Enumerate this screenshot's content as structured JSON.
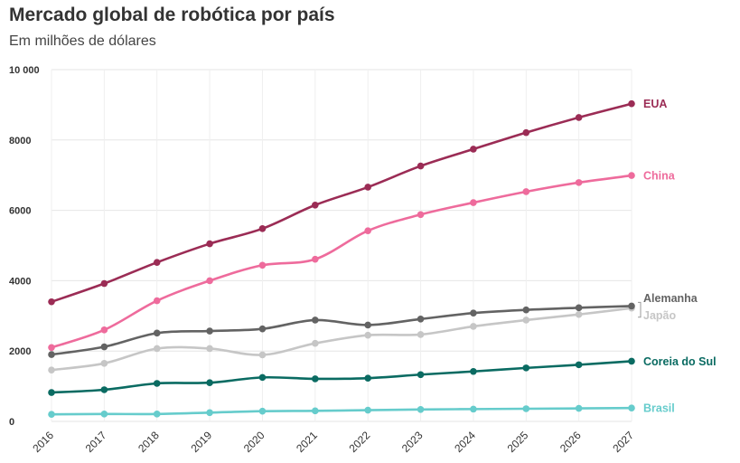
{
  "chart_data": {
    "type": "line",
    "title": "Mercado global de robótica por país",
    "subtitle": "Em milhões de dólares",
    "xlabel": "",
    "ylabel": "",
    "x": [
      "2016",
      "2017",
      "2018",
      "2019",
      "2020",
      "2021",
      "2022",
      "2023",
      "2024",
      "2025",
      "2026",
      "2027"
    ],
    "ylim": [
      0,
      10000
    ],
    "yticks": [
      {
        "value": 0,
        "label": "0"
      },
      {
        "value": 2000,
        "label": "2000"
      },
      {
        "value": 4000,
        "label": "4000"
      },
      {
        "value": 6000,
        "label": "6000"
      },
      {
        "value": 8000,
        "label": "8000"
      },
      {
        "value": 10000,
        "label": "10 000"
      }
    ],
    "grid": true,
    "legend": "direct labels at line ends",
    "series": [
      {
        "name": "EUA",
        "color": "#9b2c55",
        "values": [
          3400,
          3920,
          4520,
          5050,
          5480,
          6150,
          6660,
          7260,
          7740,
          8210,
          8640,
          9030
        ]
      },
      {
        "name": "China",
        "color": "#ee6b9c",
        "values": [
          2100,
          2600,
          3430,
          4000,
          4440,
          4610,
          5420,
          5880,
          6220,
          6530,
          6790,
          6990
        ]
      },
      {
        "name": "Alemanha",
        "color": "#636363",
        "values": [
          1900,
          2120,
          2510,
          2570,
          2630,
          2880,
          2740,
          2910,
          3080,
          3170,
          3230,
          3280
        ]
      },
      {
        "name": "Japão",
        "color": "#c6c6c6",
        "values": [
          1460,
          1650,
          2070,
          2070,
          1890,
          2220,
          2450,
          2470,
          2700,
          2880,
          3040,
          3220
        ]
      },
      {
        "name": "Coreia do Sul",
        "color": "#0a6b62",
        "values": [
          820,
          900,
          1080,
          1100,
          1250,
          1210,
          1230,
          1330,
          1420,
          1520,
          1610,
          1710
        ]
      },
      {
        "name": "Brasil",
        "color": "#66cccc",
        "values": [
          200,
          210,
          210,
          250,
          290,
          300,
          320,
          340,
          350,
          360,
          370,
          380
        ]
      }
    ]
  }
}
